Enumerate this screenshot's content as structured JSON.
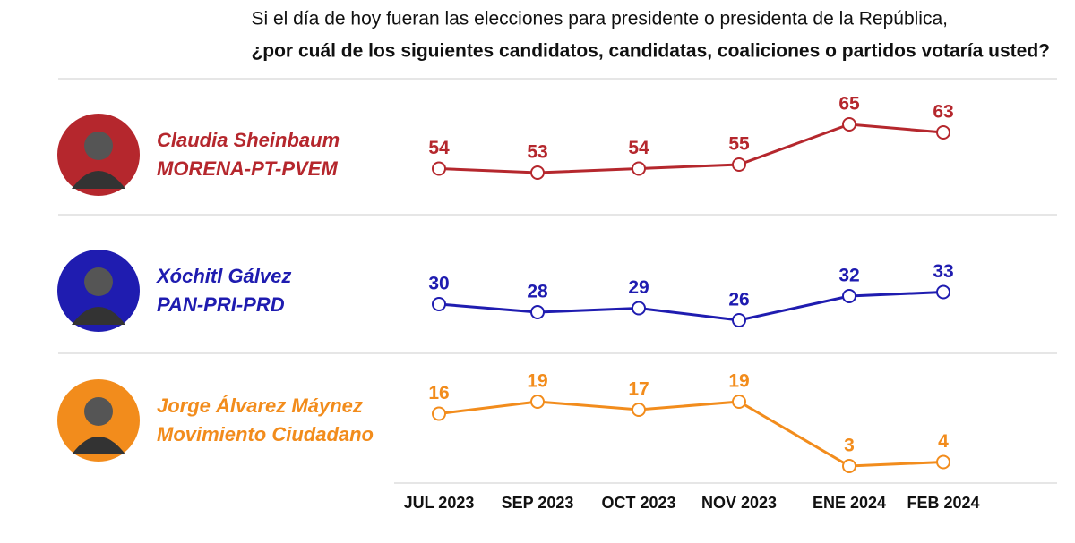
{
  "chart_data": {
    "type": "line",
    "title": "Si el día de hoy fueran las elecciones para presidente o presidenta de la República,",
    "subtitle": "¿por cuál de los siguientes candidatos, candidatas, coaliciones o partidos votaría usted?",
    "categories": [
      "JUL 2023",
      "SEP 2023",
      "OCT 2023",
      "NOV 2023",
      "ENE 2024",
      "FEB 2024"
    ],
    "series": [
      {
        "name": "Claudia Sheinbaum",
        "party": "MORENA-PT-PVEM",
        "color": "#b5272d",
        "values": [
          54,
          53,
          54,
          55,
          65,
          63
        ]
      },
      {
        "name": "Xóchitl Gálvez",
        "party": "PAN-PRI-PRD",
        "color": "#1f1cb0",
        "values": [
          30,
          28,
          29,
          26,
          32,
          33
        ]
      },
      {
        "name": "Jorge Álvarez Máynez",
        "party": "Movimiento Ciudadano",
        "color": "#f28c1c",
        "values": [
          16,
          19,
          17,
          19,
          3,
          4
        ]
      }
    ]
  }
}
